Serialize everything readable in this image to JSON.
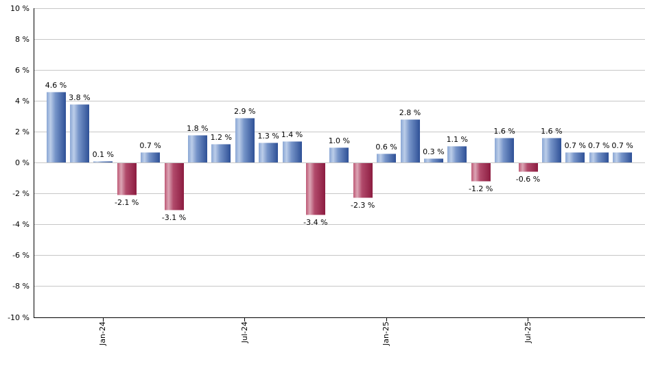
{
  "chart": {
    "background": "#ffffff",
    "grid_color": "#c6c6c6",
    "axis_color": "#000000",
    "text_color": "#000000",
    "positive_bar_colors": {
      "edge": "#8aa6d4",
      "highlight": "#bccee9",
      "mid": "#7795c9",
      "dark": "#2e5096"
    },
    "negative_bar_colors": {
      "edge": "#bd5875",
      "highlight": "#dca6b5",
      "mid": "#b14a6b",
      "dark": "#8c1c40"
    }
  },
  "chart_data": {
    "type": "bar",
    "title": "",
    "xlabel": "",
    "ylabel": "",
    "unit": "%",
    "ylim": [
      -10,
      10
    ],
    "grid": true,
    "legend": "none",
    "y_ticks": [
      {
        "value": 10,
        "label": "10 %"
      },
      {
        "value": 8,
        "label": "8 %"
      },
      {
        "value": 6,
        "label": "6 %"
      },
      {
        "value": 4,
        "label": "4 %"
      },
      {
        "value": 2,
        "label": "2 %"
      },
      {
        "value": 0,
        "label": "0 %"
      },
      {
        "value": -2,
        "label": "-2 %"
      },
      {
        "value": -4,
        "label": "-4 %"
      },
      {
        "value": -6,
        "label": "-6 %"
      },
      {
        "value": -8,
        "label": "-8 %"
      },
      {
        "value": -10,
        "label": "-10 %"
      }
    ],
    "values": [
      4.6,
      3.8,
      0.1,
      -2.1,
      0.7,
      -3.1,
      1.8,
      1.2,
      2.9,
      1.3,
      1.4,
      -3.4,
      1.0,
      -2.3,
      0.6,
      2.8,
      0.3,
      1.1,
      -1.2,
      1.6,
      -0.6,
      1.6,
      0.7,
      0.7,
      0.7
    ],
    "bar_labels": [
      "4.6 %",
      "3.8 %",
      "0.1 %",
      "-2.1 %",
      "0.7 %",
      "-3.1 %",
      "1.8 %",
      "1.2 %",
      "2.9 %",
      "1.3 %",
      "1.4 %",
      "-3.4 %",
      "1.0 %",
      "-2.3 %",
      "0.6 %",
      "2.8 %",
      "0.3 %",
      "1.1 %",
      "-1.2 %",
      "1.6 %",
      "-0.6 %",
      "1.6 %",
      "0.7 %",
      "0.7 %",
      "0.7 %"
    ],
    "x_ticks": [
      {
        "label": "Jan-24",
        "bar_index": 2
      },
      {
        "label": "Jul-24",
        "bar_index": 8
      },
      {
        "label": "Jan-25",
        "bar_index": 14
      },
      {
        "label": "Jul-25",
        "bar_index": 20
      }
    ]
  }
}
